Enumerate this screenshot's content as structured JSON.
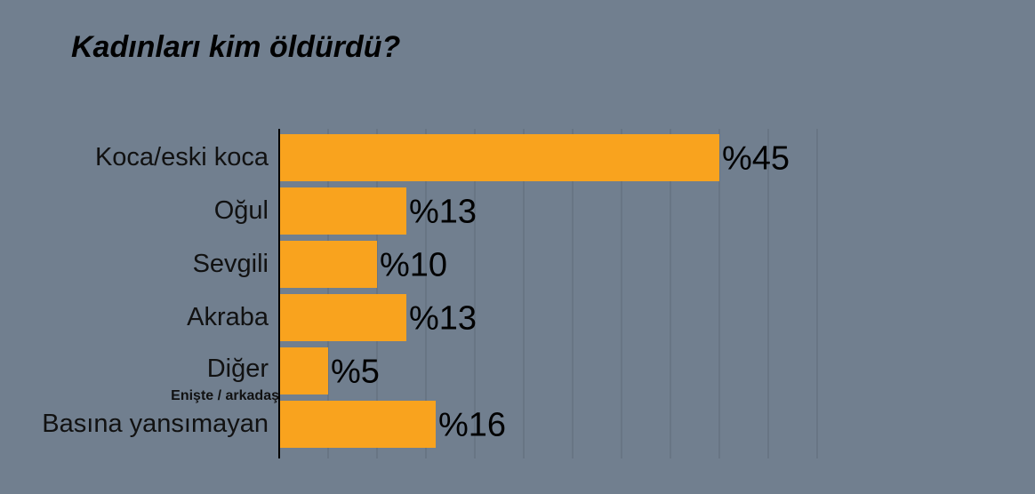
{
  "chart_data": {
    "type": "bar",
    "orientation": "horizontal",
    "title": "Kadınları kim öldürdü?",
    "categories": [
      "Koca/eski koca",
      "Oğul",
      "Sevgili",
      "Akraba",
      "Diğer",
      "Basına yansımayan"
    ],
    "values": [
      45,
      13,
      10,
      13,
      5,
      16
    ],
    "value_labels": [
      "%45",
      "%13",
      "%10",
      "%13",
      "%5",
      "%16"
    ],
    "category_notes": {
      "Diğer": "Enişte / arkadaş"
    },
    "xlim": [
      0,
      55
    ],
    "grid": true,
    "colors": {
      "bar": "#f9a31e",
      "background": "#717f8f",
      "grid": "#5f6b78",
      "axis": "#000000"
    }
  }
}
